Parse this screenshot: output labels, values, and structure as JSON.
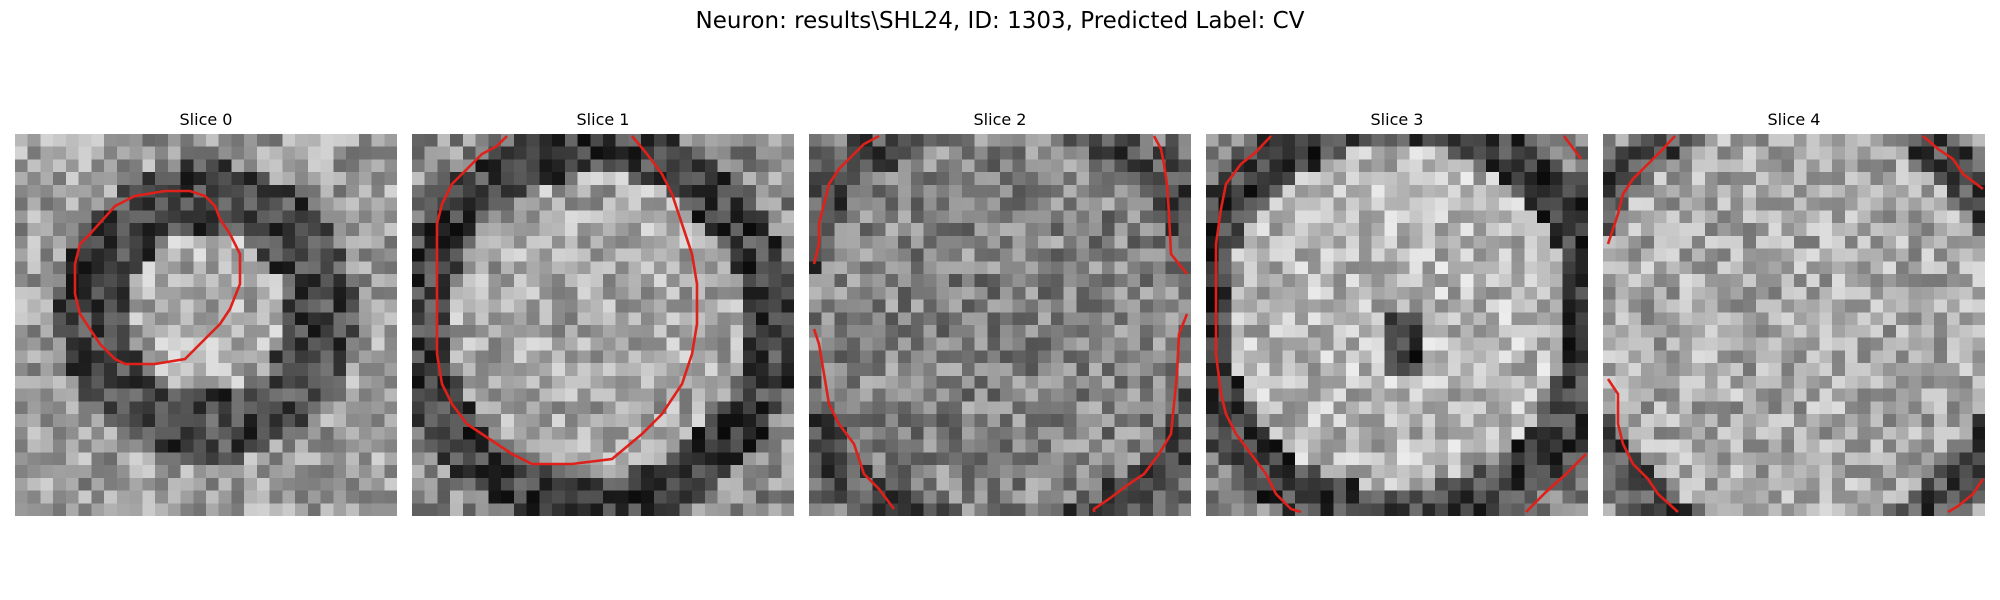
{
  "figure": {
    "title": "Neuron: results\\SHL24, ID: 1303, Predicted Label: CV",
    "colormap": "gray",
    "contour_color": "#e0201a"
  },
  "panels": [
    {
      "title": "Slice 0"
    },
    {
      "title": "Slice 1"
    },
    {
      "title": "Slice 2"
    },
    {
      "title": "Slice 3"
    },
    {
      "title": "Slice 4"
    }
  ]
}
